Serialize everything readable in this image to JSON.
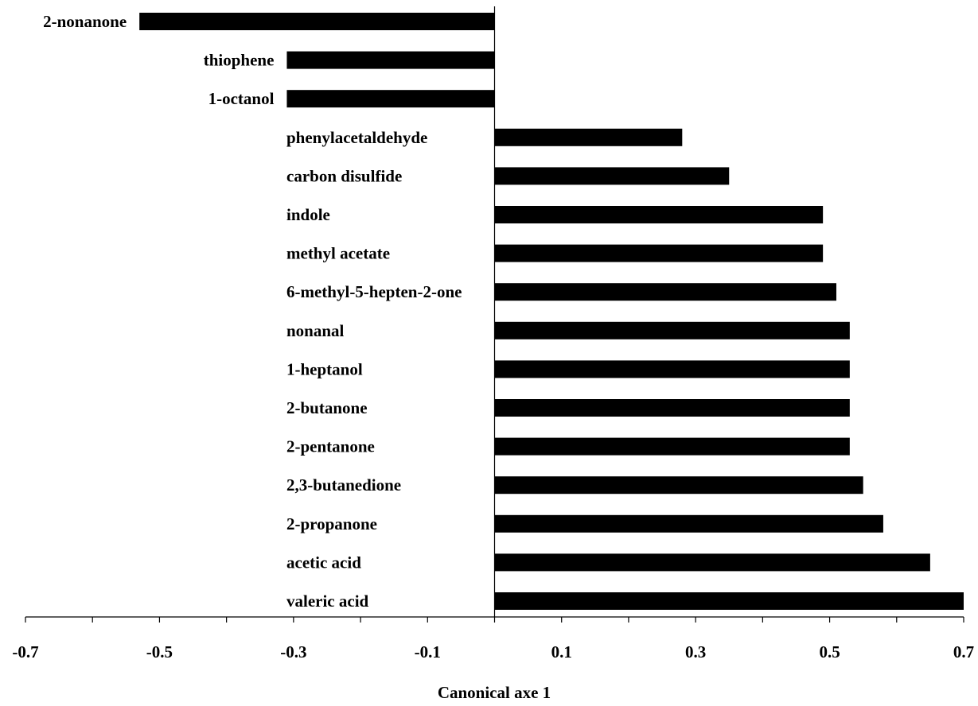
{
  "chart_data": {
    "type": "bar",
    "orientation": "horizontal",
    "title": "",
    "xlabel": "Canonical axe 1",
    "ylabel": "",
    "xlim": [
      -0.7,
      0.7
    ],
    "xticks": [
      "-0.7",
      "-0.5",
      "-0.3",
      "-0.1",
      "0.1",
      "0.3",
      "0.5",
      "0.7"
    ],
    "grid": false,
    "legend": "none",
    "bar_color": "#000000",
    "categories": [
      "2-nonanone",
      "thiophene",
      "1-octanol",
      "phenylacetaldehyde",
      "carbon disulfide",
      "indole",
      "methyl acetate",
      "6-methyl-5-hepten-2-one",
      "nonanal",
      "1-heptanol",
      "2-butanone",
      "2-pentanone",
      "2,3-butanedione",
      "2-propanone",
      "acetic acid",
      "valeric acid"
    ],
    "values": [
      -0.53,
      -0.31,
      -0.31,
      0.28,
      0.35,
      0.49,
      0.49,
      0.51,
      0.53,
      0.53,
      0.53,
      0.53,
      0.55,
      0.58,
      0.65,
      0.7
    ]
  }
}
